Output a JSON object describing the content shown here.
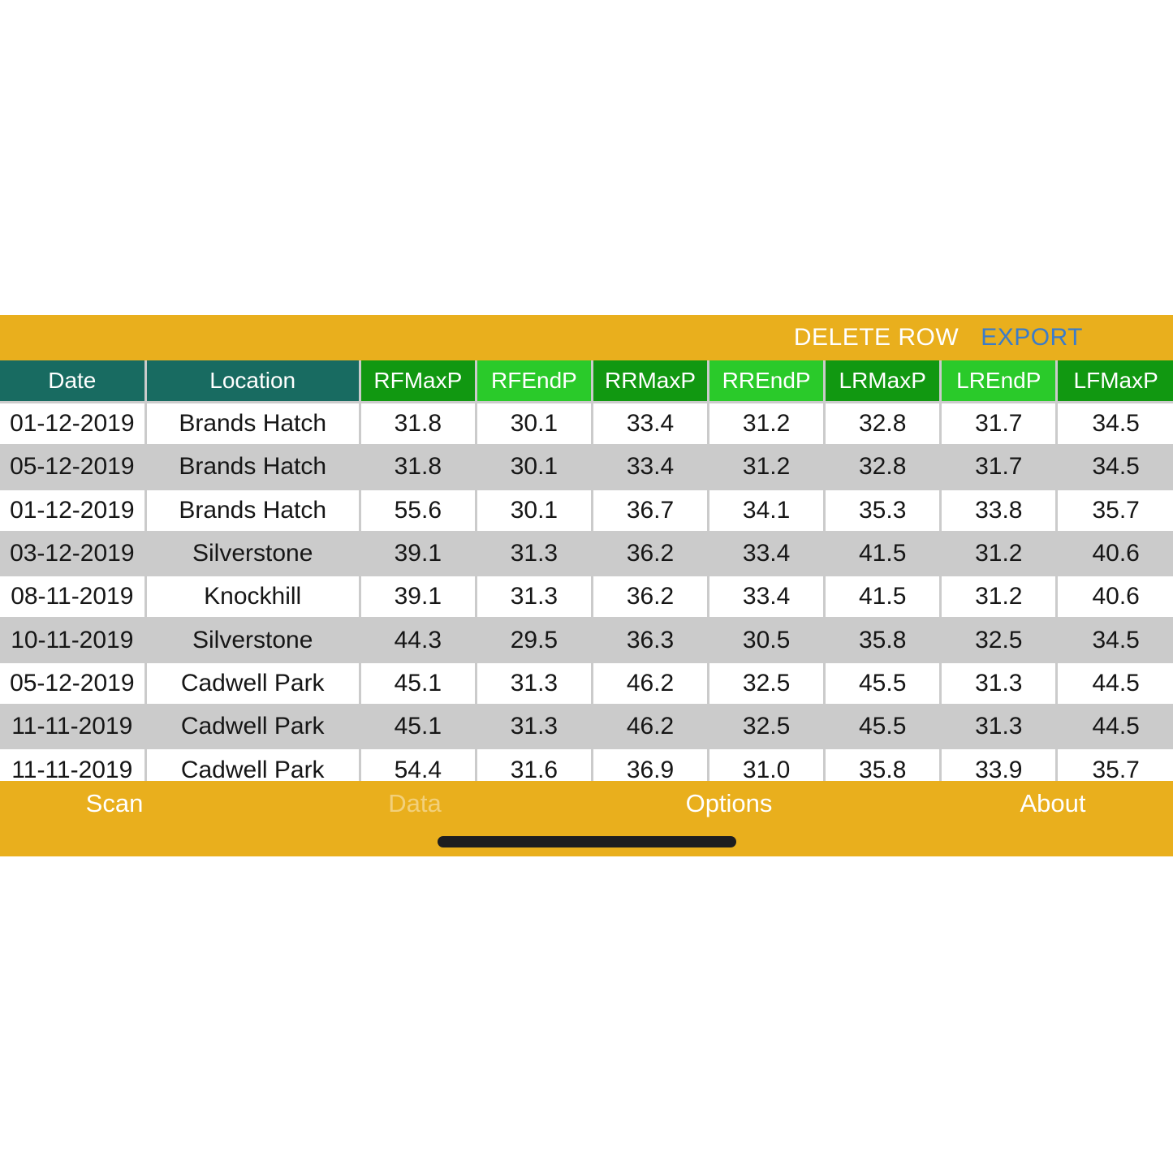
{
  "colors": {
    "amber": "#E9AF1D",
    "teal": "#186B61",
    "green-dark": "#119811",
    "green-bright": "#2ACA2A",
    "export-blue": "#3B7CC9",
    "row-gray": "#CBCBCB"
  },
  "toolbar": {
    "delete_row_label": "DELETE ROW",
    "export_label": "EXPORT"
  },
  "table": {
    "columns": [
      {
        "label": "Date",
        "tone": "teal"
      },
      {
        "label": "Location",
        "tone": "teal"
      },
      {
        "label": "RFMaxP",
        "tone": "dark-green"
      },
      {
        "label": "RFEndP",
        "tone": "bright-green"
      },
      {
        "label": "RRMaxP",
        "tone": "dark-green"
      },
      {
        "label": "RREndP",
        "tone": "bright-green"
      },
      {
        "label": "LRMaxP",
        "tone": "dark-green"
      },
      {
        "label": "LREndP",
        "tone": "bright-green"
      },
      {
        "label": "LFMaxP",
        "tone": "dark-green"
      }
    ],
    "rows": [
      [
        "01-12-2019",
        "Brands Hatch",
        "31.8",
        "30.1",
        "33.4",
        "31.2",
        "32.8",
        "31.7",
        "34.5"
      ],
      [
        "05-12-2019",
        "Brands Hatch",
        "31.8",
        "30.1",
        "33.4",
        "31.2",
        "32.8",
        "31.7",
        "34.5"
      ],
      [
        "01-12-2019",
        "Brands Hatch",
        "55.6",
        "30.1",
        "36.7",
        "34.1",
        "35.3",
        "33.8",
        "35.7"
      ],
      [
        "03-12-2019",
        "Silverstone",
        "39.1",
        "31.3",
        "36.2",
        "33.4",
        "41.5",
        "31.2",
        "40.6"
      ],
      [
        "08-11-2019",
        "Knockhill",
        "39.1",
        "31.3",
        "36.2",
        "33.4",
        "41.5",
        "31.2",
        "40.6"
      ],
      [
        "10-11-2019",
        "Silverstone",
        "44.3",
        "29.5",
        "36.3",
        "30.5",
        "35.8",
        "32.5",
        "34.5"
      ],
      [
        "05-12-2019",
        "Cadwell Park",
        "45.1",
        "31.3",
        "46.2",
        "32.5",
        "45.5",
        "31.3",
        "44.5"
      ],
      [
        "11-11-2019",
        "Cadwell Park",
        "45.1",
        "31.3",
        "46.2",
        "32.5",
        "45.5",
        "31.3",
        "44.5"
      ],
      [
        "11-11-2019",
        "Cadwell Park",
        "54.4",
        "31.6",
        "36.9",
        "31.0",
        "35.8",
        "33.9",
        "35.7"
      ]
    ]
  },
  "tabbar": {
    "tabs": [
      {
        "label": "Scan",
        "selected": false
      },
      {
        "label": "Data",
        "selected": true
      },
      {
        "label": "Options",
        "selected": false
      },
      {
        "label": "About",
        "selected": false
      }
    ]
  }
}
